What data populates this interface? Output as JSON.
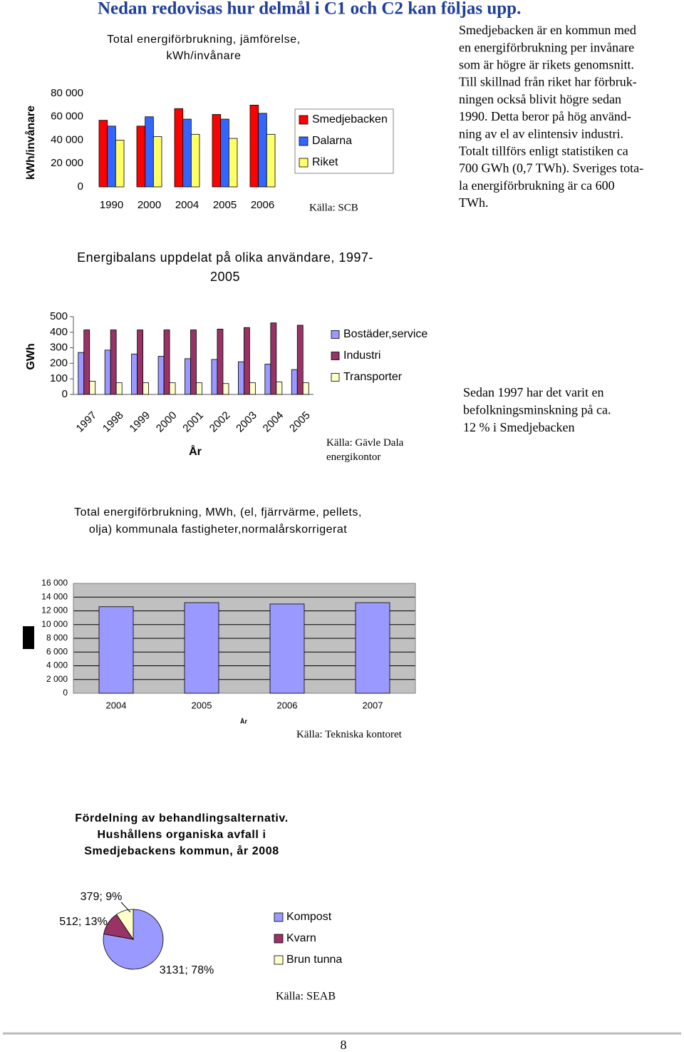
{
  "heading": "Nedan redovisas hur delmål i C1 och C2 kan följas upp.",
  "paragraphs": [
    {
      "lines": [
        "Smedjebacken är en kommun med",
        "en energiförbrukning per invånare",
        "som är högre är rikets genomsnitt.",
        "Till skillnad från riket har förbruk-",
        "ningen också blivit högre sedan",
        "1990. Detta beror på hög använd-",
        "ning av el av elintensiv industri.",
        "Totalt tillförs enligt statistiken ca",
        "700 GWh (0,7 TWh). Sveriges tota-",
        "la energiförbrukning är ca 600",
        "TWh."
      ]
    },
    {
      "lines": [
        "Sedan 1997 har det varit en",
        "befolkningsminskning på ca.",
        "12 % i Smedjebacken"
      ]
    }
  ],
  "page_number": "8",
  "chart_data": [
    {
      "type": "bar",
      "title": "Total energiförbrukning, jämförelse, kWh/invånare",
      "y_label": "kWh/invånare",
      "source": "Källa: SCB",
      "categories": [
        "1990",
        "2000",
        "2004",
        "2005",
        "2006"
      ],
      "series": [
        {
          "name": "Smedjebacken",
          "color": "#ff0000",
          "values": [
            57000,
            52000,
            67000,
            62000,
            70000
          ]
        },
        {
          "name": "Dalarna",
          "color": "#3366ff",
          "values": [
            52000,
            60000,
            58000,
            58000,
            63000
          ]
        },
        {
          "name": "Riket",
          "color": "#ffff66",
          "values": [
            40000,
            43000,
            45000,
            41500,
            45000
          ]
        }
      ],
      "ylim": [
        0,
        80000
      ],
      "yticks": [
        0,
        {
          "value": 20000,
          "label": "20 000"
        },
        {
          "value": 40000,
          "label": "40 000"
        },
        {
          "value": 60000,
          "label": "60 000"
        },
        {
          "value": 80000,
          "label": "80 000"
        }
      ],
      "grid": false,
      "legend": "right"
    },
    {
      "type": "bar",
      "title": "Energibalans uppdelat på olika användare, 1997-2005",
      "y_label": "GWh",
      "x_label": "År",
      "source": "Källa: Gävle Dala energikontor",
      "categories": [
        "1997",
        "1998",
        "1999",
        "2000",
        "2001",
        "2002",
        "2003",
        "2004",
        "2005"
      ],
      "series": [
        {
          "name": "Bostäder,service",
          "color": "#9999ff",
          "values": [
            270,
            285,
            260,
            245,
            230,
            225,
            210,
            195,
            160
          ]
        },
        {
          "name": "Industri",
          "color": "#993366",
          "values": [
            415,
            415,
            415,
            415,
            415,
            420,
            430,
            460,
            445
          ]
        },
        {
          "name": "Transporter",
          "color": "#ffffcc",
          "values": [
            85,
            75,
            75,
            75,
            75,
            70,
            75,
            80,
            75
          ]
        }
      ],
      "ylim": [
        0,
        500
      ],
      "yticks": [
        0,
        100,
        200,
        300,
        400,
        500
      ],
      "grid": false,
      "legend": "right"
    },
    {
      "type": "bar",
      "title": "Total energiförbrukning, MWh, (el, fjärrvärme, pellets, olja) kommunala fastigheter,normalårskorrigerat",
      "x_label": "År",
      "source": "Källa: Tekniska kontoret",
      "categories": [
        "2004",
        "2005",
        "2006",
        "2007"
      ],
      "values": [
        12600,
        13200,
        13000,
        13200
      ],
      "color": "#9999ff",
      "ylim": [
        0,
        16000
      ],
      "yticks": [
        0,
        {
          "value": 2000,
          "label": "2 000"
        },
        {
          "value": 4000,
          "label": "4 000"
        },
        {
          "value": 6000,
          "label": "6 000"
        },
        {
          "value": 8000,
          "label": "8 000"
        },
        {
          "value": 10000,
          "label": "10 000"
        },
        {
          "value": 12000,
          "label": "12 000"
        },
        {
          "value": 14000,
          "label": "14 000"
        },
        {
          "value": 16000,
          "label": "16 000"
        }
      ],
      "grid": true,
      "background": "#c0c0c0"
    },
    {
      "type": "pie",
      "title": "Fördelning av behandlingsalternativ. Hushållens organiska avfall i Smedjebackens kommun, år 2008",
      "source": "Källa: SEAB",
      "categories": [
        "Kompost",
        "Kvarn",
        "Brun tunna"
      ],
      "values": [
        3131,
        512,
        379
      ],
      "value_labels": [
        "3131; 78%",
        "512; 13%",
        "379; 9%"
      ],
      "colors": [
        "#9999ff",
        "#993366",
        "#ffffcc"
      ],
      "legend": "right"
    }
  ]
}
